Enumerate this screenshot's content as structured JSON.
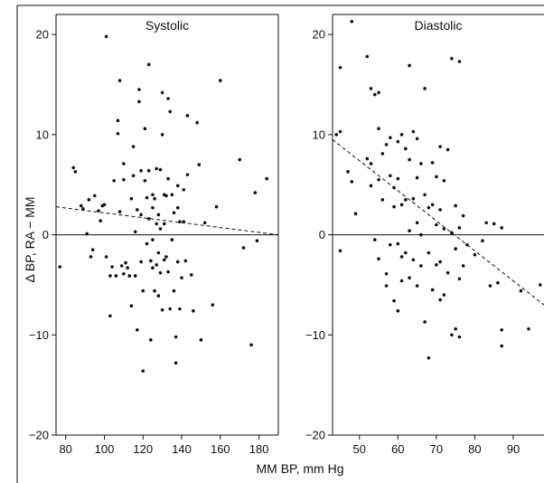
{
  "colors": {
    "ink": "#111111",
    "background": "#ffffff"
  },
  "shared": {
    "ylabel": "Δ BP, RA − MM",
    "xlabel": "MM BP, mm Hg"
  },
  "chart_data": [
    {
      "type": "scatter",
      "title": "Systolic",
      "xlim": [
        75,
        190
      ],
      "ylim": [
        -20,
        22
      ],
      "xticks": [
        80,
        100,
        120,
        140,
        160,
        180
      ],
      "yticks": [
        -20,
        -10,
        0,
        10,
        20
      ],
      "zero_line": true,
      "trend_line": {
        "style": "dashed",
        "from": [
          75,
          2.8
        ],
        "to": [
          190,
          0
        ]
      },
      "points": [
        [
          77,
          -3.2
        ],
        [
          84,
          6.7
        ],
        [
          85,
          6.3
        ],
        [
          88,
          2.9
        ],
        [
          89,
          2.6
        ],
        [
          91,
          0.1
        ],
        [
          92,
          3.5
        ],
        [
          93,
          -2.2
        ],
        [
          94,
          -1.5
        ],
        [
          95,
          3.9
        ],
        [
          97,
          2.4
        ],
        [
          98,
          1.4
        ],
        [
          99,
          2.9
        ],
        [
          100,
          3.0
        ],
        [
          101,
          19.8
        ],
        [
          101,
          -2.2
        ],
        [
          103,
          -4.1
        ],
        [
          103,
          -8.1
        ],
        [
          104,
          -3.2
        ],
        [
          105,
          5.4
        ],
        [
          106,
          -4.1
        ],
        [
          107,
          11.4
        ],
        [
          107,
          10.1
        ],
        [
          108,
          15.4
        ],
        [
          108,
          2.3
        ],
        [
          109,
          -3.1
        ],
        [
          110,
          7.1
        ],
        [
          110,
          5.5
        ],
        [
          110,
          -3.9
        ],
        [
          111,
          -2.8
        ],
        [
          112,
          -3.3
        ],
        [
          113,
          -4.1
        ],
        [
          114,
          3.6
        ],
        [
          114,
          -7.1
        ],
        [
          115,
          8.8
        ],
        [
          115,
          5.9
        ],
        [
          116,
          0.3
        ],
        [
          116,
          -4.1
        ],
        [
          117,
          2.5
        ],
        [
          117,
          -9.5
        ],
        [
          118,
          14.5
        ],
        [
          118,
          13.3
        ],
        [
          119,
          6.4
        ],
        [
          119,
          2.0
        ],
        [
          119,
          -2.7
        ],
        [
          120,
          -13.6
        ],
        [
          120,
          -5.6
        ],
        [
          121,
          10.6
        ],
        [
          121,
          5.4
        ],
        [
          122,
          3.7
        ],
        [
          122,
          -0.9
        ],
        [
          123,
          17.0
        ],
        [
          123,
          6.4
        ],
        [
          123,
          1.6
        ],
        [
          124,
          -2.6
        ],
        [
          124,
          -10.5
        ],
        [
          125,
          4.0
        ],
        [
          125,
          2.7
        ],
        [
          125,
          -0.5
        ],
        [
          125,
          -3.3
        ],
        [
          126,
          3.6
        ],
        [
          126,
          -5.6
        ],
        [
          127,
          6.6
        ],
        [
          127,
          1.1
        ],
        [
          127,
          -3.0
        ],
        [
          128,
          2.0
        ],
        [
          128,
          -1.8
        ],
        [
          128,
          -6.1
        ],
        [
          129,
          6.5
        ],
        [
          129,
          0.6
        ],
        [
          129,
          -3.8
        ],
        [
          130,
          14.2
        ],
        [
          130,
          10.0
        ],
        [
          130,
          -7.5
        ],
        [
          131,
          4.0
        ],
        [
          131,
          1.1
        ],
        [
          131,
          -2.5
        ],
        [
          132,
          3.9
        ],
        [
          132,
          -2.2
        ],
        [
          133,
          13.6
        ],
        [
          133,
          5.6
        ],
        [
          133,
          -3.7
        ],
        [
          134,
          12.3
        ],
        [
          134,
          -7.4
        ],
        [
          135,
          4.0
        ],
        [
          135,
          -0.5
        ],
        [
          136,
          2.2
        ],
        [
          136,
          -5.6
        ],
        [
          137,
          -12.8
        ],
        [
          137,
          -10.2
        ],
        [
          138,
          4.9
        ],
        [
          138,
          2.7
        ],
        [
          138,
          -2.7
        ],
        [
          139,
          1.3
        ],
        [
          139,
          -7.4
        ],
        [
          140,
          -4.3
        ],
        [
          141,
          4.5
        ],
        [
          141,
          1.3
        ],
        [
          142,
          -2.6
        ],
        [
          143,
          11.9
        ],
        [
          143,
          6.0
        ],
        [
          145,
          -4.0
        ],
        [
          146,
          -7.6
        ],
        [
          148,
          11.2
        ],
        [
          149,
          7.0
        ],
        [
          150,
          -10.5
        ],
        [
          152,
          1.2
        ],
        [
          156,
          -7.0
        ],
        [
          158,
          2.8
        ],
        [
          160,
          15.4
        ],
        [
          170,
          7.5
        ],
        [
          172,
          -1.3
        ],
        [
          176,
          -11.0
        ],
        [
          178,
          4.2
        ],
        [
          179,
          -0.6
        ],
        [
          184,
          5.6
        ]
      ]
    },
    {
      "type": "scatter",
      "title": "Diastolic",
      "xlim": [
        43,
        98
      ],
      "ylim": [
        -20,
        22
      ],
      "xticks": [
        50,
        60,
        70,
        80,
        90
      ],
      "yticks": [
        -20,
        -10,
        0,
        10,
        20
      ],
      "zero_line": true,
      "trend_line": {
        "style": "dashed",
        "from": [
          43,
          9.5
        ],
        "to": [
          98,
          -7
        ]
      },
      "points": [
        [
          44,
          10.0
        ],
        [
          45,
          16.7
        ],
        [
          45,
          10.3
        ],
        [
          45,
          -1.6
        ],
        [
          47,
          6.3
        ],
        [
          48,
          21.3
        ],
        [
          48,
          5.3
        ],
        [
          49,
          2.1
        ],
        [
          52,
          17.8
        ],
        [
          52,
          7.6
        ],
        [
          53,
          14.6
        ],
        [
          53,
          7.1
        ],
        [
          53,
          4.9
        ],
        [
          54,
          14.0
        ],
        [
          54,
          -0.5
        ],
        [
          55,
          14.2
        ],
        [
          55,
          10.6
        ],
        [
          55,
          5.5
        ],
        [
          55,
          -2.4
        ],
        [
          56,
          8.1
        ],
        [
          56,
          3.5
        ],
        [
          57,
          9.0
        ],
        [
          57,
          -3.9
        ],
        [
          57,
          -5.1
        ],
        [
          58,
          9.7
        ],
        [
          58,
          5.9
        ],
        [
          58,
          -1.0
        ],
        [
          59,
          4.7
        ],
        [
          59,
          2.8
        ],
        [
          59,
          -6.6
        ],
        [
          60,
          9.3
        ],
        [
          60,
          5.6
        ],
        [
          60,
          -0.9
        ],
        [
          60,
          -7.6
        ],
        [
          61,
          10.0
        ],
        [
          61,
          3.0
        ],
        [
          61,
          -2.2
        ],
        [
          61,
          -4.6
        ],
        [
          62,
          8.6
        ],
        [
          62,
          3.5
        ],
        [
          62,
          -1.8
        ],
        [
          63,
          16.9
        ],
        [
          63,
          7.5
        ],
        [
          63,
          0.4
        ],
        [
          63,
          -4.3
        ],
        [
          64,
          10.3
        ],
        [
          64,
          3.6
        ],
        [
          64,
          -2.5
        ],
        [
          65,
          9.6
        ],
        [
          65,
          5.7
        ],
        [
          65,
          1.2
        ],
        [
          65,
          -5.1
        ],
        [
          66,
          7.1
        ],
        [
          66,
          0.0
        ],
        [
          66,
          -3.1
        ],
        [
          67,
          14.6
        ],
        [
          67,
          4.0
        ],
        [
          67,
          -8.7
        ],
        [
          68,
          2.7
        ],
        [
          68,
          -1.8
        ],
        [
          68,
          -12.3
        ],
        [
          69,
          7.2
        ],
        [
          69,
          3.0
        ],
        [
          69,
          -5.5
        ],
        [
          70,
          5.8
        ],
        [
          70,
          1.0
        ],
        [
          70,
          -3.0
        ],
        [
          71,
          8.8
        ],
        [
          71,
          2.5
        ],
        [
          71,
          -2.7
        ],
        [
          71,
          -6.5
        ],
        [
          72,
          5.4
        ],
        [
          72,
          0.6
        ],
        [
          72,
          -6.0
        ],
        [
          73,
          8.5
        ],
        [
          73,
          -3.8
        ],
        [
          74,
          17.6
        ],
        [
          74,
          0.2
        ],
        [
          74,
          -10.0
        ],
        [
          75,
          2.9
        ],
        [
          75,
          -1.4
        ],
        [
          75,
          -9.4
        ],
        [
          76,
          17.3
        ],
        [
          76,
          0.7
        ],
        [
          76,
          -4.4
        ],
        [
          76,
          -10.2
        ],
        [
          77,
          1.9
        ],
        [
          77,
          -3.1
        ],
        [
          78,
          -1.0
        ],
        [
          80,
          -2.0
        ],
        [
          82,
          -0.6
        ],
        [
          83,
          1.2
        ],
        [
          84,
          -5.1
        ],
        [
          85,
          1.1
        ],
        [
          86,
          -4.8
        ],
        [
          87,
          0.7
        ],
        [
          87,
          -9.5
        ],
        [
          87,
          -11.1
        ],
        [
          92,
          -5.6
        ],
        [
          94,
          -9.4
        ],
        [
          97,
          -5.0
        ]
      ]
    }
  ]
}
